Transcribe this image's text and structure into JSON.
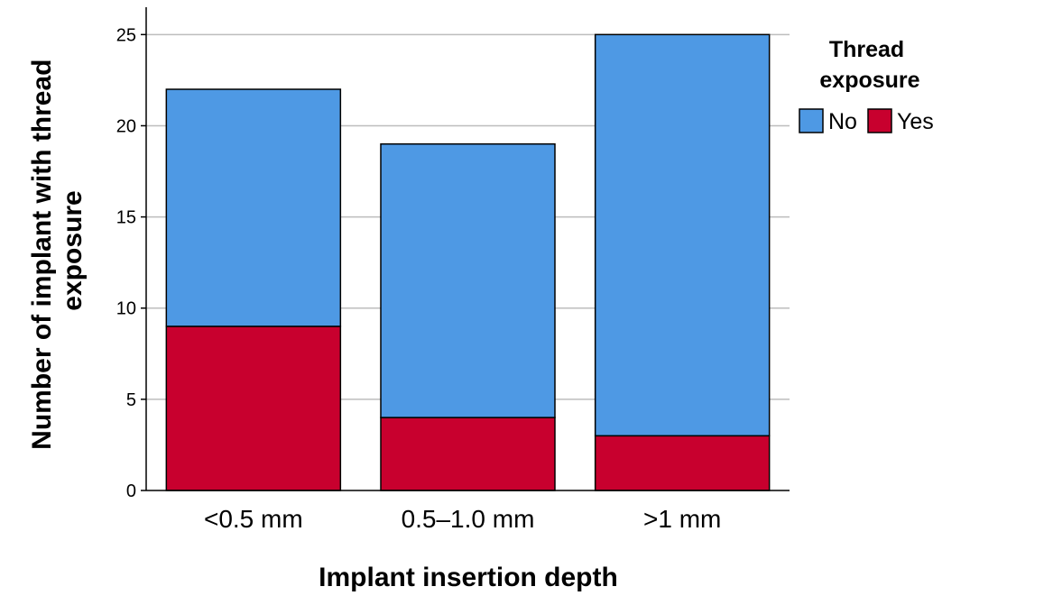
{
  "chart_data": {
    "type": "bar",
    "stacked": true,
    "categories": [
      "<0.5 mm",
      "0.5–1.0 mm",
      ">1 mm"
    ],
    "series": [
      {
        "name": "Yes",
        "values": [
          9,
          4,
          3
        ],
        "color": "#C8002E"
      },
      {
        "name": "No",
        "values": [
          13,
          15,
          22
        ],
        "color": "#4E99E4"
      }
    ],
    "totals": [
      22,
      19,
      25
    ],
    "xlabel": "Implant insertion depth",
    "ylabel": "Number of implant with thread exposure",
    "ylabel_lines": [
      "Number of implant with thread",
      "exposure"
    ],
    "ylim": [
      0,
      26.5
    ],
    "yticks": [
      0,
      5,
      10,
      15,
      20,
      25
    ],
    "grid": true,
    "legend": {
      "title_lines": [
        "Thread",
        "exposure"
      ],
      "entries": [
        {
          "label": "No",
          "color": "#4E99E4"
        },
        {
          "label": "Yes",
          "color": "#C8002E"
        }
      ],
      "placement": "right"
    },
    "grid_color": "#BDBDBD",
    "border_color": "#000000"
  }
}
